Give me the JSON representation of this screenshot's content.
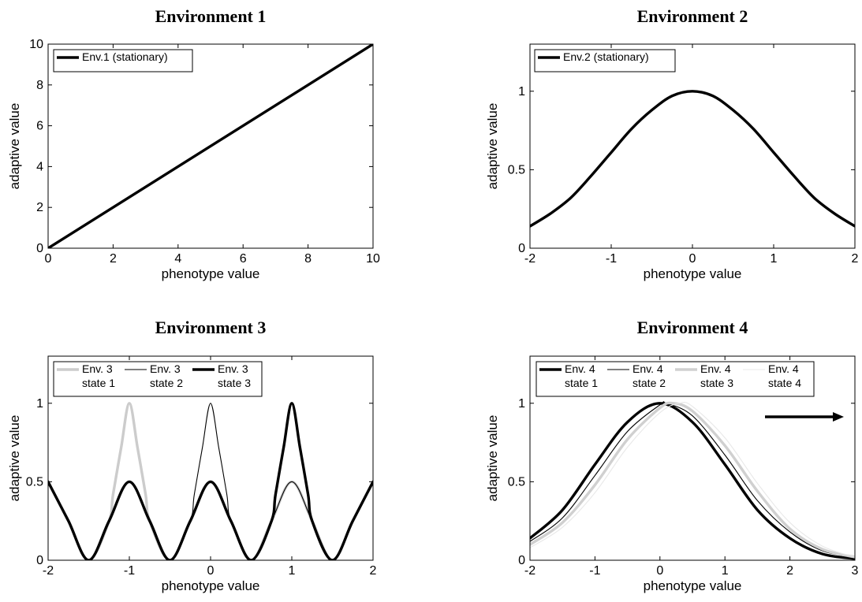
{
  "chart_data": [
    {
      "type": "line",
      "title": "Environment 1",
      "xlabel": "phenotype value",
      "ylabel": "adaptive value",
      "xlim": [
        0,
        10
      ],
      "ylim": [
        0,
        10
      ],
      "xticks": [
        "0",
        "2",
        "4",
        "6",
        "8",
        "10"
      ],
      "yticks": [
        "0",
        "2",
        "4",
        "6",
        "8",
        "10"
      ],
      "grid": false,
      "legend_position": "top-left",
      "series": [
        {
          "name": "Env.1 (stationary)",
          "color": "#000000",
          "width": "thick",
          "x": [
            0,
            10
          ],
          "y": [
            0,
            10
          ]
        }
      ]
    },
    {
      "type": "line",
      "title": "Environment 2",
      "xlabel": "phenotype value",
      "ylabel": "adaptive value",
      "xlim": [
        -2,
        2
      ],
      "ylim": [
        0,
        1.3
      ],
      "xticks": [
        "-2",
        "-1",
        "0",
        "1",
        "2"
      ],
      "yticks": [
        "0",
        "0.5",
        "1"
      ],
      "grid": false,
      "legend_position": "top-left",
      "series": [
        {
          "name": "Env.2 (stationary)",
          "color": "#000000",
          "width": "thick",
          "x": [
            -2,
            -1.75,
            -1.5,
            -1.25,
            -1,
            -0.75,
            -0.5,
            -0.25,
            0,
            0.25,
            0.5,
            0.75,
            1,
            1.25,
            1.5,
            1.75,
            2
          ],
          "y": [
            0.14,
            0.22,
            0.32,
            0.46,
            0.61,
            0.76,
            0.88,
            0.97,
            1.0,
            0.97,
            0.88,
            0.76,
            0.61,
            0.46,
            0.32,
            0.22,
            0.14
          ]
        }
      ]
    },
    {
      "type": "line",
      "title": "Environment 3",
      "xlabel": "phenotype value",
      "ylabel": "adaptive value",
      "xlim": [
        -2,
        2
      ],
      "ylim": [
        0,
        1.3
      ],
      "xticks": [
        "-2",
        "-1",
        "0",
        "1",
        "2"
      ],
      "yticks": [
        "0",
        "0.5",
        "1"
      ],
      "grid": false,
      "legend_position": "top-left",
      "series": [
        {
          "name": [
            "Env. 3",
            "state 1"
          ],
          "color": "#cccccc",
          "width": "thick",
          "x": [
            -2,
            -1.75,
            -1.5,
            -1.25,
            -1.2,
            -1.1,
            -1,
            -0.9,
            -0.8,
            -0.75,
            -0.5,
            -0.25,
            0,
            0.25,
            0.5,
            0.75,
            1,
            1.25,
            1.5,
            1.75,
            2
          ],
          "y": [
            0.5,
            0.25,
            0,
            0.25,
            0.42,
            0.72,
            1.0,
            0.72,
            0.42,
            0.25,
            0,
            0.25,
            0.5,
            0.25,
            0,
            0.25,
            0.5,
            0.25,
            0,
            0.25,
            0.5
          ]
        },
        {
          "name": [
            "Env. 3",
            "state 2"
          ],
          "color": "#000000",
          "width": "thin",
          "x": [
            -2,
            -1.75,
            -1.5,
            -1.25,
            -1,
            -0.75,
            -0.5,
            -0.25,
            -0.2,
            -0.1,
            0,
            0.1,
            0.2,
            0.25,
            0.5,
            0.75,
            1,
            1.25,
            1.5,
            1.75,
            2
          ],
          "y": [
            0.5,
            0.25,
            0,
            0.25,
            0.5,
            0.25,
            0,
            0.25,
            0.42,
            0.72,
            1.0,
            0.72,
            0.42,
            0.25,
            0,
            0.25,
            0.5,
            0.25,
            0,
            0.25,
            0.5
          ]
        },
        {
          "name": [
            "Env. 3",
            "state 3"
          ],
          "color": "#000000",
          "width": "thick",
          "x": [
            -2,
            -1.75,
            -1.5,
            -1.25,
            -1,
            -0.75,
            -0.5,
            -0.25,
            0,
            0.25,
            0.5,
            0.75,
            0.8,
            0.9,
            1,
            1.1,
            1.2,
            1.25,
            1.5,
            1.75,
            2
          ],
          "y": [
            0.5,
            0.25,
            0,
            0.25,
            0.5,
            0.25,
            0,
            0.25,
            0.5,
            0.25,
            0,
            0.25,
            0.42,
            0.72,
            1.0,
            0.72,
            0.42,
            0.25,
            0,
            0.25,
            0.5
          ]
        }
      ]
    },
    {
      "type": "line",
      "title": "Environment 4",
      "xlabel": "phenotype value",
      "ylabel": "adaptive value",
      "xlim": [
        -2,
        3
      ],
      "ylim": [
        0,
        1.3
      ],
      "xticks": [
        "-2",
        "-1",
        "0",
        "1",
        "2",
        "3"
      ],
      "yticks": [
        "0",
        "0.5",
        "1"
      ],
      "grid": false,
      "legend_position": "top",
      "annotation": "arrow pointing right",
      "series": [
        {
          "name": [
            "Env. 4",
            "state 1"
          ],
          "color": "#000000",
          "width": "thick",
          "x": [
            -2,
            -1.5,
            -1,
            -0.5,
            0,
            0.5,
            1,
            1.5,
            2,
            2.5,
            3
          ],
          "y": [
            0.14,
            0.32,
            0.61,
            0.88,
            1.0,
            0.88,
            0.61,
            0.32,
            0.14,
            0.04,
            0.01
          ]
        },
        {
          "name": [
            "Env. 4",
            "state 2"
          ],
          "color": "#000000",
          "width": "thin",
          "x": [
            -2,
            -1.5,
            -1,
            -0.5,
            0,
            0.1,
            0.5,
            1,
            1.5,
            2,
            2.5,
            3
          ],
          "y": [
            0.12,
            0.27,
            0.54,
            0.82,
            0.99,
            1.0,
            0.92,
            0.67,
            0.38,
            0.18,
            0.06,
            0.02
          ]
        },
        {
          "name": [
            "Env. 4",
            "state 3"
          ],
          "color": "#d0d0d0",
          "width": "thick",
          "x": [
            -2,
            -1.5,
            -1,
            -0.5,
            0,
            0.2,
            0.5,
            1,
            1.5,
            2,
            2.5,
            3
          ],
          "y": [
            0.1,
            0.24,
            0.48,
            0.77,
            0.97,
            1.0,
            0.95,
            0.73,
            0.44,
            0.2,
            0.07,
            0.02
          ]
        },
        {
          "name": [
            "Env. 4",
            "state 4"
          ],
          "color": "#e8e8e8",
          "width": "thin",
          "x": [
            -2,
            -1.5,
            -1,
            -0.5,
            0,
            0.3,
            0.5,
            1,
            1.5,
            2,
            2.5,
            3
          ],
          "y": [
            0.08,
            0.21,
            0.43,
            0.72,
            0.94,
            1.0,
            0.98,
            0.78,
            0.49,
            0.24,
            0.09,
            0.02
          ]
        }
      ]
    }
  ]
}
